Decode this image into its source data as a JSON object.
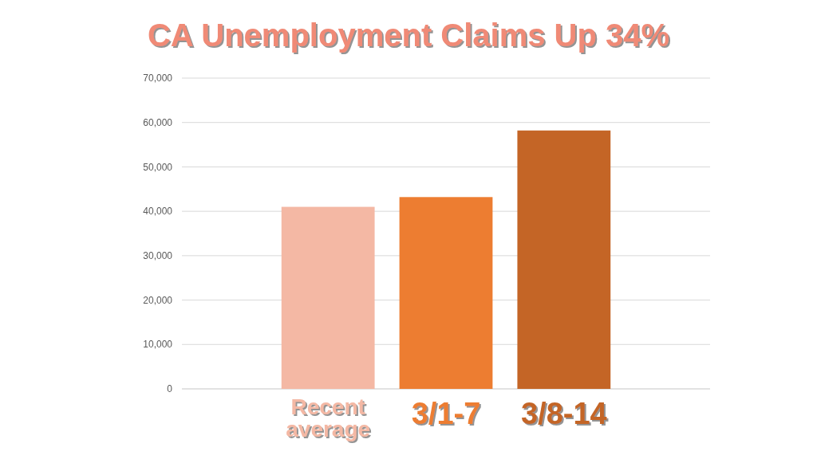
{
  "chart_data": {
    "type": "bar",
    "title": "CA Unemployment Claims Up 34%",
    "categories": [
      "Recent average",
      "3/1-7",
      "3/8-14"
    ],
    "values": [
      41000,
      43200,
      58200
    ],
    "colors": [
      "#f4b8a4",
      "#ed7d31",
      "#c46526"
    ],
    "ylim": [
      0,
      70000
    ],
    "yticks": [
      {
        "value": 0,
        "label": "0"
      },
      {
        "value": 10000,
        "label": "10,000"
      },
      {
        "value": 20000,
        "label": "20,000"
      },
      {
        "value": 30000,
        "label": "30,000"
      },
      {
        "value": 40000,
        "label": "40,000"
      },
      {
        "value": 50000,
        "label": "50,000"
      },
      {
        "value": 60000,
        "label": "60,000"
      },
      {
        "value": 70000,
        "label": "70,000"
      }
    ],
    "grid": "y"
  }
}
